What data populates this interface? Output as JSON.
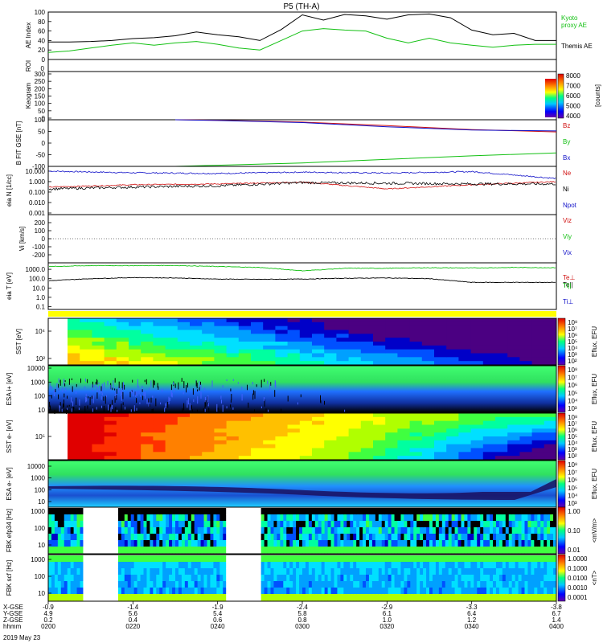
{
  "figure": {
    "title": "P5 (TH-A)",
    "date": "2019 May 23"
  },
  "colors": {
    "black": "#000000",
    "red": "#d01010",
    "green": "#12c012",
    "blue": "#1010c8",
    "yellow": "#ffff00"
  },
  "chart_data": [
    {
      "type": "line",
      "panel": "ae",
      "ylabel": "AE Index",
      "ylim": [
        0,
        100
      ],
      "yticks": [
        "0",
        "20",
        "40",
        "60",
        "80",
        "100"
      ],
      "legend": [
        "Kyoto",
        "proxy AE",
        "Themis AE"
      ],
      "x": [
        "0200",
        "0205",
        "0210",
        "0215",
        "0220",
        "0225",
        "0230",
        "0235",
        "0240",
        "0245",
        "0250",
        "0255",
        "0300",
        "0305",
        "0310",
        "0315",
        "0320",
        "0325",
        "0330",
        "0335",
        "0340",
        "0345",
        "0350",
        "0355",
        "0400"
      ],
      "series": [
        {
          "name": "Themis AE",
          "color": "#000000",
          "values": [
            37,
            37,
            38,
            40,
            44,
            46,
            50,
            58,
            52,
            48,
            40,
            63,
            94,
            83,
            95,
            92,
            85,
            94,
            96,
            88,
            62,
            52,
            55,
            40,
            40
          ]
        },
        {
          "name": "Kyoto proxy AE",
          "color": "#12c012",
          "values": [
            15,
            18,
            24,
            30,
            35,
            30,
            35,
            38,
            32,
            24,
            20,
            40,
            60,
            65,
            62,
            60,
            45,
            35,
            45,
            35,
            30,
            26,
            30,
            32,
            32
          ]
        }
      ]
    },
    {
      "type": "line",
      "panel": "roi",
      "ylabel": "ROI",
      "ylim": [
        0,
        1
      ],
      "yticks": [
        "0"
      ]
    },
    {
      "type": "heatmap",
      "panel": "keogram",
      "ylabel": "Keogram",
      "yticks": [
        "0",
        "50",
        "100",
        "150",
        "200",
        "250",
        "300"
      ],
      "colorbar_label": "[counts]",
      "colorbar_ticks": [
        "4000",
        "5000",
        "6000",
        "7000",
        "8000"
      ]
    },
    {
      "type": "line",
      "panel": "bfield",
      "ylabel": "B FIT GSE [nT]",
      "ylim": [
        -100,
        100
      ],
      "yticks": [
        "-100",
        "-50",
        "0",
        "50",
        "100"
      ],
      "legend": [
        "Bz",
        "By",
        "Bx"
      ],
      "x": [
        "0230",
        "0240",
        "0300",
        "0320",
        "0340",
        "0400"
      ],
      "series": [
        {
          "name": "Bz",
          "color": "#d01010",
          "values": [
            100,
            98,
            90,
            75,
            58,
            48
          ]
        },
        {
          "name": "By",
          "color": "#12c012",
          "values": [
            -100,
            -95,
            -85,
            -70,
            -55,
            -42
          ]
        },
        {
          "name": "Bx",
          "color": "#1010c8",
          "values": [
            100,
            97,
            88,
            70,
            56,
            52
          ]
        }
      ]
    },
    {
      "type": "line",
      "panel": "density",
      "ylabel": "eia N [1/cc]",
      "scale": "log",
      "ylim": [
        0.001,
        20
      ],
      "yticks": [
        "10.000",
        "1.000",
        "0.100",
        "0.010",
        "0.001"
      ],
      "legend": [
        "Ne",
        "Ni",
        "Npot"
      ],
      "x": [
        "0200",
        "0220",
        "0240",
        "0300",
        "0320",
        "0340",
        "0400"
      ],
      "series": [
        {
          "name": "Ne",
          "color": "#1010c8",
          "values": [
            10,
            7,
            6,
            8,
            6.5,
            9,
            2
          ]
        },
        {
          "name": "Ni",
          "color": "#d01010",
          "values": [
            0.3,
            0.5,
            0.6,
            0.9,
            0.2,
            0.5,
            1.0
          ]
        },
        {
          "name": "Npot",
          "color": "#000000",
          "values": [
            0.2,
            0.3,
            0.4,
            0.8,
            0.7,
            0.6,
            0.6
          ]
        }
      ]
    },
    {
      "type": "line",
      "panel": "velocity",
      "ylabel": "Vi [km/s]",
      "ylim": [
        -300,
        300
      ],
      "yticks": [
        "200",
        "100",
        "0",
        "-100",
        "-200"
      ],
      "legend": [
        "Viz",
        "Viy",
        "Vix"
      ]
    },
    {
      "type": "line",
      "panel": "temperature",
      "ylabel": "eia T [eV]",
      "scale": "log",
      "ylim": [
        0.05,
        5000
      ],
      "yticks": [
        "1000.0",
        "100.0",
        "10.0",
        "1.0",
        "0.1"
      ],
      "legend": [
        "Te||",
        "Te⊥",
        "Ti||",
        "Ti⊥"
      ],
      "x": [
        "0200",
        "0210",
        "0220",
        "0230",
        "0240",
        "0250",
        "0300",
        "0310",
        "0320",
        "0330",
        "0340",
        "0350",
        "0400"
      ],
      "series": [
        {
          "name": "Te||",
          "color": "#12c012",
          "values": [
            2000,
            2500,
            2500,
            2600,
            2000,
            1600,
            700,
            1300,
            1300,
            1500,
            1400,
            1600,
            1500
          ]
        },
        {
          "name": "Te⊥",
          "color": "#000000",
          "values": [
            60,
            100,
            130,
            120,
            90,
            85,
            90,
            110,
            120,
            100,
            40,
            40,
            40
          ]
        }
      ]
    },
    {
      "type": "heatmap",
      "panel": "sst-ions",
      "ylabel": "SST [eV]",
      "yticks": [
        "10⁴",
        "10²"
      ],
      "colorbar_label": "Eflux, EFU",
      "colorbar_ticks": [
        "10⁸",
        "10⁷",
        "10⁶",
        "10⁵",
        "10⁴",
        "10³",
        "10²"
      ]
    },
    {
      "type": "heatmap",
      "panel": "esa-ions",
      "ylabel": "ESA i+ [eV]",
      "yticks": [
        "10000",
        "1000",
        "100",
        "10"
      ],
      "colorbar_label": "Eflux, EFU",
      "colorbar_ticks": [
        "10⁸",
        "10⁷",
        "10⁶",
        "10⁵",
        "10⁴",
        "10³"
      ]
    },
    {
      "type": "heatmap",
      "panel": "sst-electrons",
      "ylabel": "SST e- [eV]",
      "yticks": [
        "10⁵"
      ],
      "colorbar_label": "Eflux, EFU",
      "colorbar_ticks": [
        "10⁸",
        "10⁷",
        "10⁶",
        "10⁵",
        "10⁴",
        "10³",
        "10²"
      ]
    },
    {
      "type": "heatmap",
      "panel": "esa-electrons",
      "ylabel": "ESA e- [eV]",
      "yticks": [
        "10000",
        "1000",
        "100",
        "10"
      ],
      "colorbar_label": "Eflux, EFU",
      "colorbar_ticks": [
        "10⁸",
        "10⁷",
        "10⁶",
        "10⁵",
        "10⁴",
        "10³"
      ]
    },
    {
      "type": "heatmap",
      "panel": "fbk-e",
      "ylabel": "FBK efp34 [Hz]",
      "yticks": [
        "1000",
        "100",
        "10"
      ],
      "colorbar_label": "<mV/m>",
      "colorbar_ticks": [
        "1.00",
        "0.10",
        "0.01"
      ]
    },
    {
      "type": "heatmap",
      "panel": "fbk-b",
      "ylabel": "FBK scf [Hz]",
      "yticks": [
        "1000",
        "100",
        "10"
      ],
      "colorbar_label": "<nT>",
      "colorbar_ticks": [
        "1.0000",
        "0.1000",
        "0.0100",
        "0.0010",
        "0.0001"
      ]
    }
  ],
  "x_axis": {
    "row_labels": [
      "X-GSE",
      "Y-GSE",
      "Z-GSE",
      "hhmm"
    ],
    "rows": [
      [
        "-0.9",
        "-1.4",
        "-1.9",
        "-2.4",
        "-2.9",
        "-3.3",
        "-3.8"
      ],
      [
        "4.9",
        "5.6",
        "5.4",
        "5.8",
        "6.1",
        "6.4",
        "6.7"
      ],
      [
        "0.2",
        "0.4",
        "0.6",
        "0.8",
        "1.0",
        "1.2",
        "1.4"
      ],
      [
        "0200",
        "0220",
        "0240",
        "0300",
        "0320",
        "0340",
        "0400"
      ]
    ]
  }
}
